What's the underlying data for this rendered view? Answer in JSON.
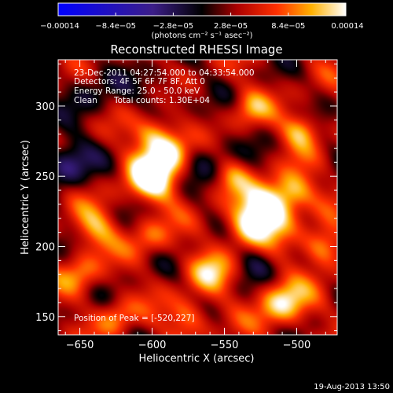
{
  "chart_data": {
    "type": "heatmap",
    "title": "Reconstructed RHESSI Image",
    "xlabel": "Heliocentric X (arcsec)",
    "ylabel": "Heliocentric Y (arcsec)",
    "xlim": [
      -665,
      -472
    ],
    "ylim": [
      137,
      333
    ],
    "x_ticks": [
      -650,
      -600,
      -550,
      -500
    ],
    "x_tick_labels": [
      "−650",
      "−600",
      "−550",
      "−500"
    ],
    "y_ticks": [
      150,
      200,
      250,
      300
    ],
    "y_tick_labels": [
      "150",
      "200",
      "250",
      "300"
    ],
    "colorbar": {
      "min": -0.00014,
      "max": 0.00014,
      "tick_values": [
        -0.00014,
        -8.4e-05,
        -2.8e-05,
        2.8e-05,
        8.4e-05,
        0.00014
      ],
      "tick_labels": [
        "−0.00014",
        "−8.4e−05",
        "−2.8e−05",
        "2.8e−05",
        "8.4e−05",
        "0.00014"
      ],
      "unit_label": "(photons cm⁻² s⁻¹ asec⁻²)"
    },
    "annotations": {
      "time_range": "23-Dec-2011 04:27:54.000 to 04:33:54.000",
      "detectors": "Detectors: 4F 5F 6F 7F 8F, Att 0",
      "energy": "Energy Range: 25.0 - 50.0 keV",
      "method": "Clean",
      "total_counts": "Total counts: 1.30E+04",
      "peak_position": "Position of Peak = [-520,227]"
    },
    "peak": [
      -520,
      227
    ],
    "sources": [
      {
        "x": -600,
        "y": 250,
        "amplitude": 0.00014,
        "sigma": 12
      },
      {
        "x": -598,
        "y": 280,
        "amplitude": 9e-05,
        "sigma": 10
      },
      {
        "x": -586,
        "y": 268,
        "amplitude": 8e-05,
        "sigma": 9
      },
      {
        "x": -520,
        "y": 227,
        "amplitude": 0.00014,
        "sigma": 12
      },
      {
        "x": -535,
        "y": 213,
        "amplitude": 9e-05,
        "sigma": 11
      },
      {
        "x": -502,
        "y": 240,
        "amplitude": 8e-05,
        "sigma": 10
      },
      {
        "x": -497,
        "y": 283,
        "amplitude": 8e-05,
        "sigma": 9
      },
      {
        "x": -532,
        "y": 299,
        "amplitude": 6e-05,
        "sigma": 9
      },
      {
        "x": -640,
        "y": 213,
        "amplitude": 7e-05,
        "sigma": 11
      },
      {
        "x": -650,
        "y": 180,
        "amplitude": 6e-05,
        "sigma": 10
      },
      {
        "x": -602,
        "y": 206,
        "amplitude": 5e-05,
        "sigma": 10
      },
      {
        "x": -560,
        "y": 182,
        "amplitude": 7e-05,
        "sigma": 11
      },
      {
        "x": -575,
        "y": 150,
        "amplitude": 7e-05,
        "sigma": 10
      },
      {
        "x": -510,
        "y": 160,
        "amplitude": 0.0001,
        "sigma": 12
      },
      {
        "x": -482,
        "y": 200,
        "amplitude": 9e-05,
        "sigma": 10
      },
      {
        "x": -625,
        "y": 150,
        "amplitude": 6e-05,
        "sigma": 9
      },
      {
        "x": -545,
        "y": 250,
        "amplitude": 5e-05,
        "sigma": 9
      },
      {
        "x": -660,
        "y": 260,
        "amplitude": -8e-05,
        "sigma": 12
      },
      {
        "x": -640,
        "y": 310,
        "amplitude": -4e-05,
        "sigma": 14
      },
      {
        "x": -560,
        "y": 265,
        "amplitude": -4e-05,
        "sigma": 12
      },
      {
        "x": -530,
        "y": 190,
        "amplitude": -4e-05,
        "sigma": 10
      },
      {
        "x": -590,
        "y": 310,
        "amplitude": -3e-05,
        "sigma": 12
      }
    ],
    "grid": false
  },
  "footer": {
    "date": "19-Aug-2013 13:50"
  }
}
